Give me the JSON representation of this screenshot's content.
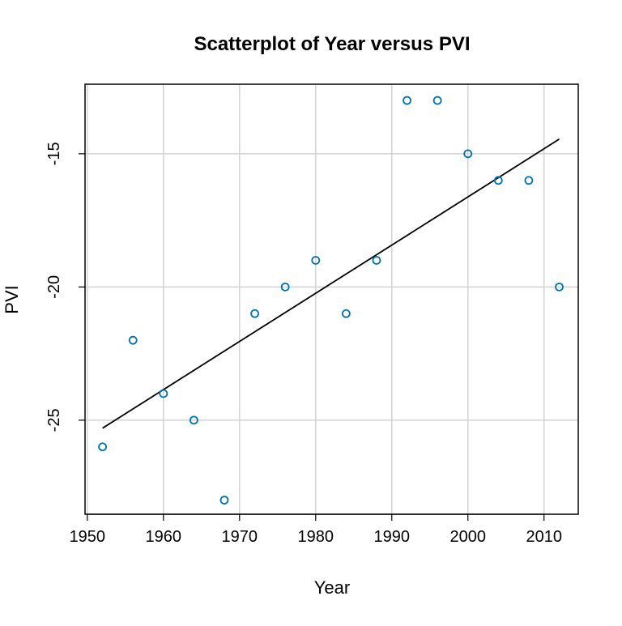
{
  "chart_data": {
    "type": "scatter",
    "title": "Scatterplot of Year versus PVI",
    "xlabel": "Year",
    "ylabel": "PVI",
    "xlim": [
      1949.7,
      2014.5
    ],
    "ylim": [
      -28.53,
      -12.39
    ],
    "xticks": [
      1950,
      1960,
      1970,
      1980,
      1990,
      2000,
      2010
    ],
    "yticks": [
      -25,
      -20,
      -15
    ],
    "grid": true,
    "point_color": "#0072B2",
    "line_color": "#000000",
    "points": [
      {
        "x": 1952,
        "y": -26
      },
      {
        "x": 1956,
        "y": -22
      },
      {
        "x": 1960,
        "y": -24
      },
      {
        "x": 1964,
        "y": -25
      },
      {
        "x": 1968,
        "y": -28
      },
      {
        "x": 1972,
        "y": -21
      },
      {
        "x": 1976,
        "y": -20
      },
      {
        "x": 1980,
        "y": -19
      },
      {
        "x": 1984,
        "y": -21
      },
      {
        "x": 1988,
        "y": -19
      },
      {
        "x": 1992,
        "y": -13
      },
      {
        "x": 1996,
        "y": -13
      },
      {
        "x": 2000,
        "y": -15
      },
      {
        "x": 2004,
        "y": -16
      },
      {
        "x": 2008,
        "y": -16
      },
      {
        "x": 2012,
        "y": -20
      }
    ],
    "fit_line": {
      "x": [
        1952,
        2012
      ],
      "y": [
        -25.3,
        -14.45
      ]
    }
  }
}
